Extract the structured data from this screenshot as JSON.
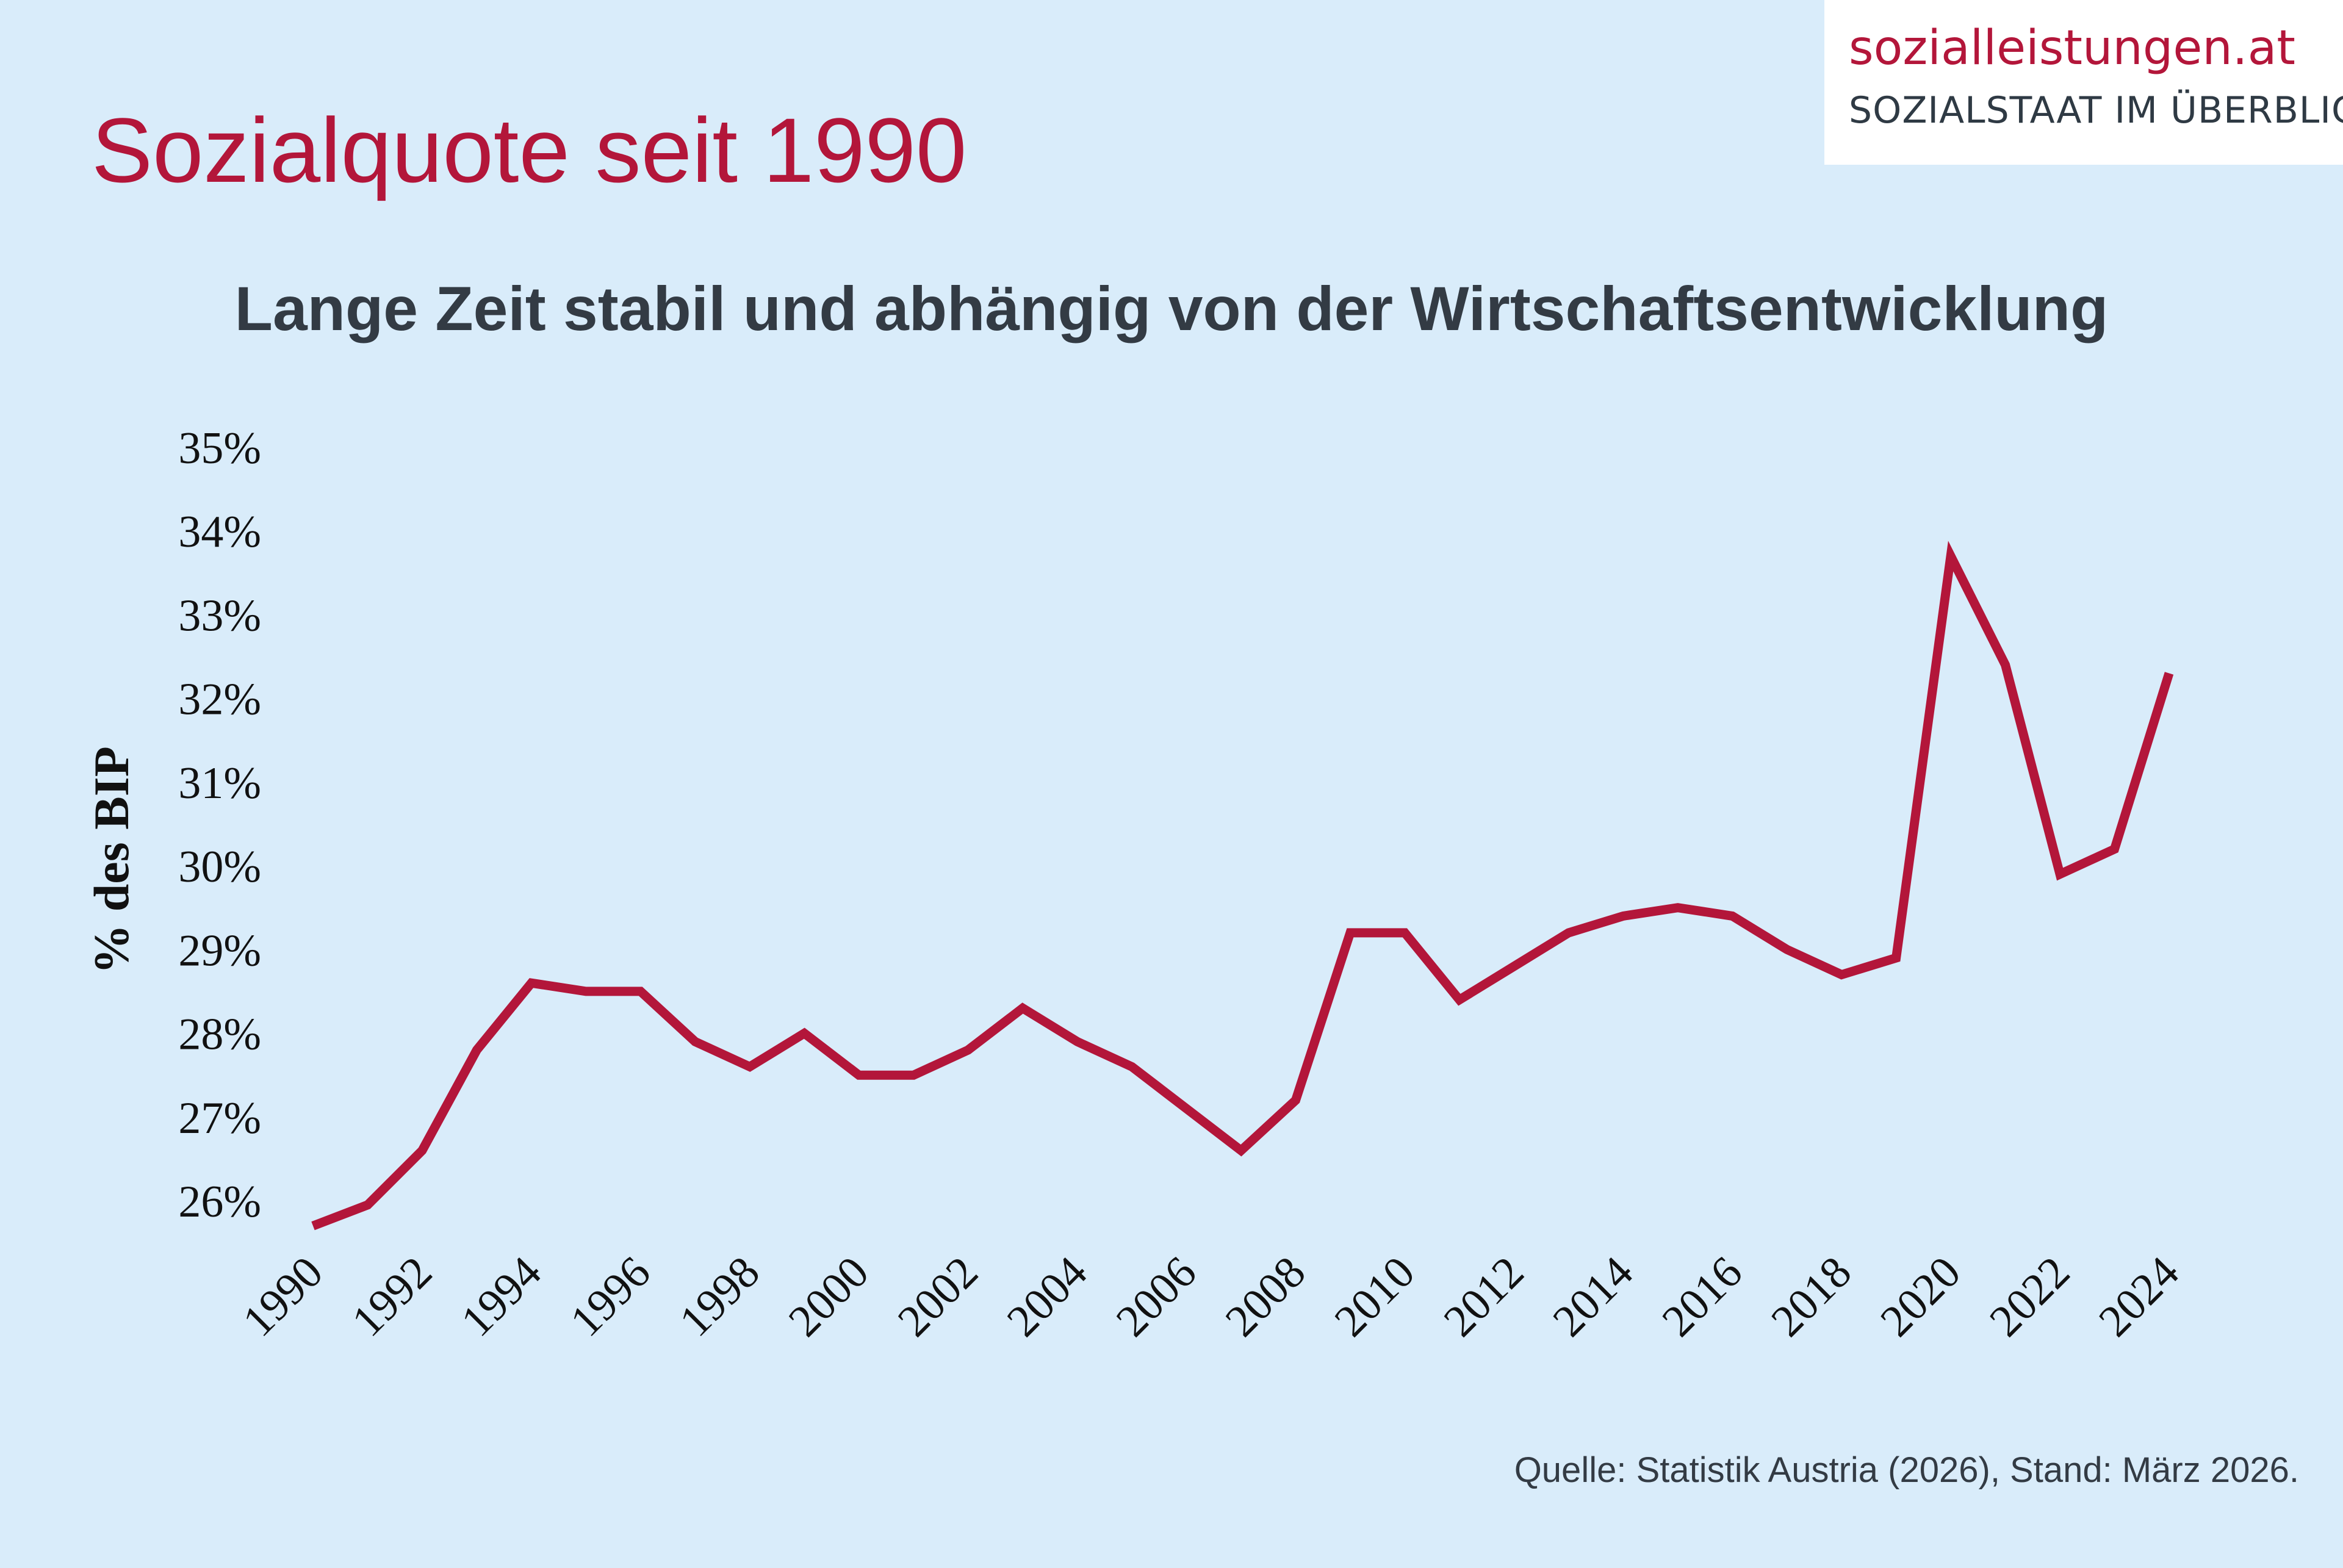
{
  "logo": {
    "name": "sozialleistungen.at",
    "tagline": "SOZIALSTAAT IM ÜBERBLICK"
  },
  "header": {
    "title": "Sozialquote seit 1990",
    "subtitle": "Lange Zeit stabil und abhängig von der Wirtschaftsentwicklung"
  },
  "footer": {
    "source": "Quelle: Statistik Austria (2026), Stand: März 2026."
  },
  "colors": {
    "background": "#d9ecfa",
    "accent": "#b3163a",
    "text": "#333b44"
  },
  "chart_data": {
    "type": "line",
    "title": "Sozialquote seit 1990",
    "subtitle": "Lange Zeit stabil und abhängig von der Wirtschaftsentwicklung",
    "ylabel": "% des BIP",
    "xlabel": "",
    "ylim": [
      26,
      35
    ],
    "y_ticks": [
      "26%",
      "27%",
      "28%",
      "29%",
      "30%",
      "31%",
      "32%",
      "33%",
      "34%",
      "35%"
    ],
    "x_ticks": [
      "1990",
      "1992",
      "1994",
      "1996",
      "1998",
      "2000",
      "2002",
      "2004",
      "2006",
      "2008",
      "2010",
      "2012",
      "2014",
      "2016",
      "2018",
      "2020",
      "2022",
      "2024"
    ],
    "grid": false,
    "legend": "none",
    "series": [
      {
        "color": "#b3163a",
        "x": [
          1990,
          1991,
          1992,
          1993,
          1994,
          1995,
          1996,
          1997,
          1998,
          1999,
          2000,
          2001,
          2002,
          2003,
          2004,
          2005,
          2006,
          2007,
          2008,
          2009,
          2010,
          2011,
          2012,
          2013,
          2014,
          2015,
          2016,
          2017,
          2018,
          2019,
          2020,
          2021,
          2022,
          2023,
          2024
        ],
        "values": [
          25.7,
          25.95,
          26.6,
          27.8,
          28.6,
          28.5,
          28.5,
          27.9,
          27.6,
          28.0,
          27.5,
          27.5,
          27.8,
          28.3,
          27.9,
          27.6,
          27.1,
          26.6,
          27.2,
          29.2,
          29.2,
          28.4,
          28.8,
          29.2,
          29.4,
          29.5,
          29.4,
          29.0,
          28.7,
          28.9,
          33.7,
          32.4,
          29.9,
          30.2,
          32.3
        ]
      }
    ]
  }
}
